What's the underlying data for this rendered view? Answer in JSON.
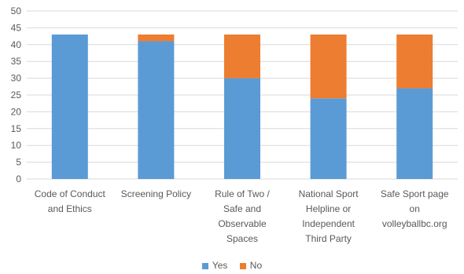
{
  "chart_data": {
    "type": "bar",
    "stacked": true,
    "categories": [
      [
        "Code of Conduct",
        "and Ethics"
      ],
      [
        "Screening Policy"
      ],
      [
        "Rule of Two /",
        "Safe and",
        "Observable",
        "Spaces"
      ],
      [
        "National Sport",
        "Helpline or",
        "Independent",
        "Third Party"
      ],
      [
        "Safe Sport page",
        "on",
        "volleyballbc.org"
      ]
    ],
    "series": [
      {
        "name": "Yes",
        "color": "#5B9BD5",
        "values": [
          43,
          41,
          30,
          24,
          27
        ]
      },
      {
        "name": "No",
        "color": "#ED7D31",
        "values": [
          0,
          2,
          13,
          19,
          16
        ]
      }
    ],
    "ylim": [
      0,
      50
    ],
    "yticks": [
      0,
      5,
      10,
      15,
      20,
      25,
      30,
      35,
      40,
      45,
      50
    ],
    "grid": true,
    "legend": "bottom-center",
    "title": "",
    "xlabel": "",
    "ylabel": ""
  }
}
